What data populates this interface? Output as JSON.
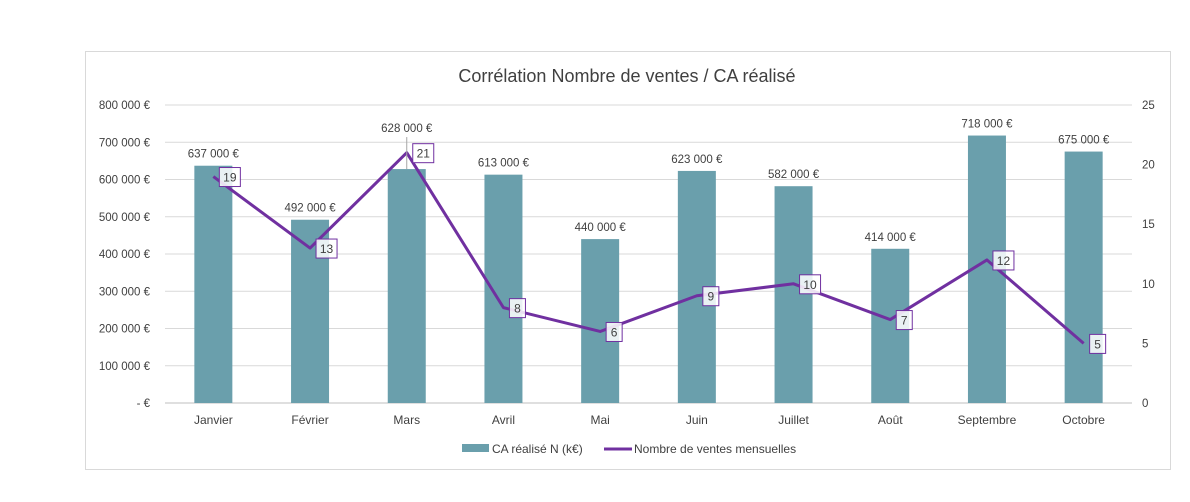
{
  "chart_data": {
    "type": "bar+line",
    "title": "Corrélation Nombre de ventes / CA réalisé",
    "categories": [
      "Janvier",
      "Février",
      "Mars",
      "Avril",
      "Mai",
      "Juin",
      "Juillet",
      "Août",
      "Septembre",
      "Octobre"
    ],
    "series": [
      {
        "name": "CA réalisé N (k€)",
        "type": "bar",
        "axis": "left",
        "color": "#6a9fac",
        "values": [
          637000,
          492000,
          628000,
          613000,
          440000,
          623000,
          582000,
          414000,
          718000,
          675000
        ],
        "labels": [
          "637 000 €",
          "492 000 €",
          "628 000 €",
          "613 000 €",
          "440 000 €",
          "623 000 €",
          "582 000 €",
          "414 000 €",
          "718 000 €",
          "675 000 €"
        ]
      },
      {
        "name": "Nombre de ventes mensuelles",
        "type": "line",
        "axis": "right",
        "color": "#7030a0",
        "values": [
          19,
          13,
          21,
          8,
          6,
          9,
          10,
          7,
          12,
          5
        ]
      }
    ],
    "y_left": {
      "range": [
        0,
        800000
      ],
      "ticks": [
        "-   €",
        "100 000 €",
        "200 000 €",
        "300 000 €",
        "400 000 €",
        "500 000 €",
        "600 000 €",
        "700 000 €",
        "800 000 €"
      ]
    },
    "y_right": {
      "range": [
        0,
        25
      ],
      "ticks": [
        "0",
        "5",
        "10",
        "15",
        "20",
        "25"
      ]
    },
    "grid": true,
    "legend": "bottom"
  }
}
